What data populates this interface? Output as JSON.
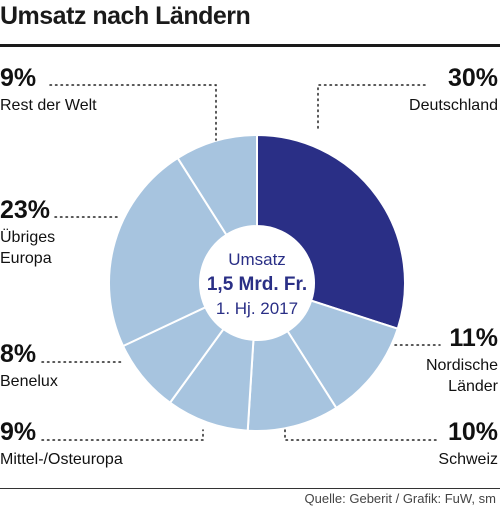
{
  "title": "Umsatz nach Ländern",
  "source": "Quelle: Geberit / Grafik: FuW, sm",
  "center": {
    "line1": "Umsatz",
    "line2": "1,5 Mrd. Fr.",
    "line3": "1. Hj. 2017"
  },
  "colors": {
    "highlight": "#2a2f86",
    "slice": "#a7c4df",
    "divider": "#ffffff"
  },
  "chart_data": {
    "type": "pie",
    "title": "Umsatz nach Ländern",
    "unit": "%",
    "slices": [
      {
        "label": "Deutschland",
        "value": 30,
        "pct_label": "30%",
        "highlight": true
      },
      {
        "label": "Nordische Länder",
        "value": 11,
        "pct_label": "11%"
      },
      {
        "label": "Schweiz",
        "value": 10,
        "pct_label": "10%"
      },
      {
        "label": "Mittel-/Osteuropa",
        "value": 9,
        "pct_label": "9%"
      },
      {
        "label": "Benelux",
        "value": 8,
        "pct_label": "8%"
      },
      {
        "label": "Übriges Europa",
        "value": 23,
        "pct_label": "23%"
      },
      {
        "label": "Rest der Welt",
        "value": 9,
        "pct_label": "9%"
      }
    ]
  }
}
